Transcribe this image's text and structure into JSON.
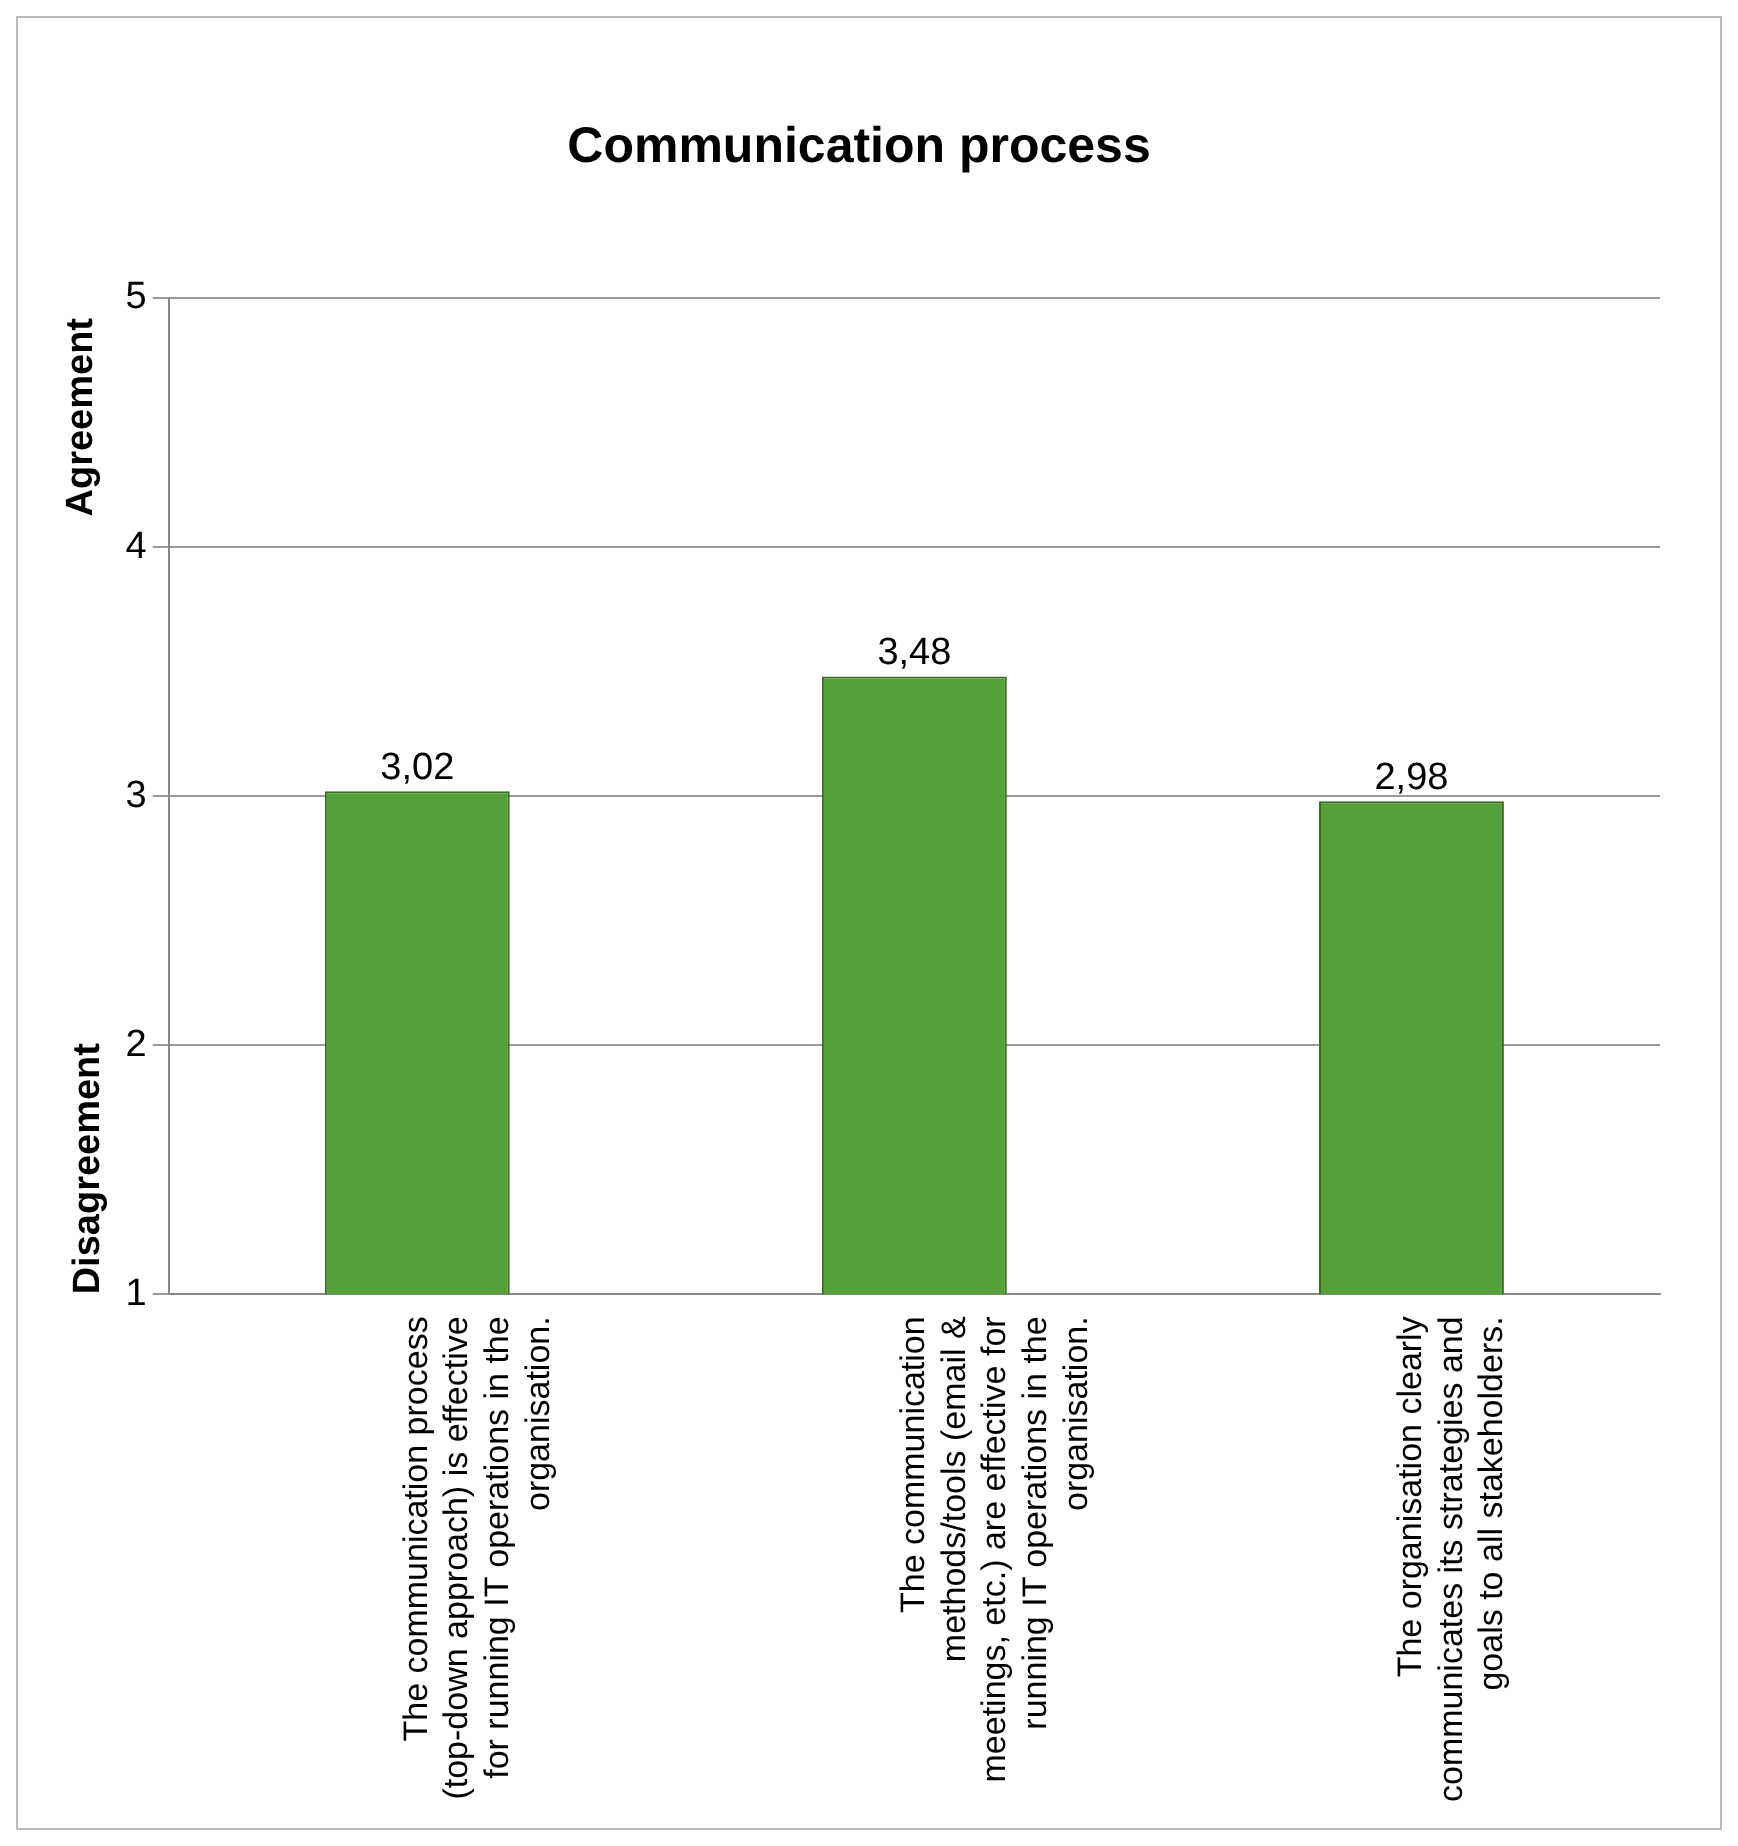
{
  "chart_data": {
    "type": "bar",
    "title": "Communication process",
    "ylabel": "Disagreement",
    "annotations": [
      "Agreement"
    ],
    "categories": [
      "The communication process (top-down approach) is effective for running IT operations in the organisation.",
      "The communication methods/tools (email & meetings, etc.) are effective for running IT operations in the organisation.",
      "The organisation clearly communicates its strategies and goals to all stakeholders."
    ],
    "values": [
      3.02,
      3.48,
      2.98
    ],
    "value_labels": [
      "3,02",
      "3,48",
      "2,98"
    ],
    "color": "#56a03c",
    "ylim": [
      1,
      5
    ],
    "yticks": [
      1,
      2,
      3,
      4,
      5
    ],
    "grid": "y",
    "legend": false
  }
}
